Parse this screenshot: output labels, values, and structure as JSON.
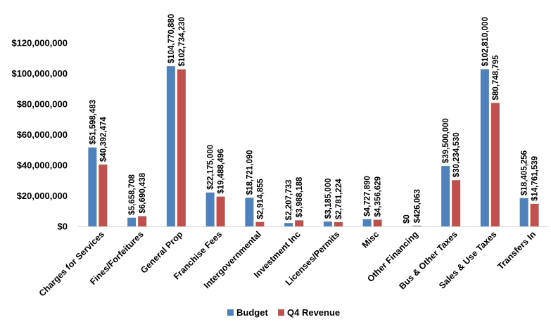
{
  "chart_data": {
    "type": "bar",
    "title": "",
    "xlabel": "",
    "ylabel": "",
    "ylim": [
      0,
      120000000
    ],
    "y_ticks": [
      0,
      20000000,
      40000000,
      60000000,
      80000000,
      100000000,
      120000000
    ],
    "y_tick_labels": [
      "$0",
      "$20,000,000",
      "$40,000,000",
      "$60,000,000",
      "$80,000,000",
      "$100,000,000",
      "$120,000,000"
    ],
    "grid": false,
    "legend_position": "bottom",
    "categories": [
      "Charges for Services",
      "Fines/Forfeitures",
      "General Prop",
      "Franchise Fees",
      "Intergovernmental",
      "Investment Inc",
      "Licenses/Permits",
      "Misc",
      "Other Financing",
      "Bus & Other Taxes",
      "Sales & Use Taxes",
      "Transfers In"
    ],
    "series": [
      {
        "name": "Budget",
        "color": "#4f81bd",
        "values": [
          51598483,
          5658708,
          104770880,
          22175000,
          18721090,
          2207733,
          3185000,
          4727890,
          0,
          39500000,
          102810000,
          18405256
        ],
        "labels": [
          "$51,598,483",
          "$5,658,708",
          "$104,770,880",
          "$22,175,000",
          "$18,721,090",
          "$2,207,733",
          "$3,185,000",
          "$4,727,890",
          "$0",
          "$39,500,000",
          "$102,810,000",
          "$18,405,256"
        ]
      },
      {
        "name": "Q4 Revenue",
        "color": "#c0504d",
        "values": [
          40392474,
          6690438,
          102734230,
          19488496,
          2914855,
          3988188,
          2781224,
          4356629,
          426063,
          30234530,
          80748795,
          14761539
        ],
        "labels": [
          "$40,392,474",
          "$6,690,438",
          "$102,734,230",
          "$19,488,496",
          "$2,914,855",
          "$3,988,188",
          "$2,781,224",
          "$4,356,629",
          "$426,063",
          "$30,234,530",
          "$80,748,795",
          "$14,761,539"
        ]
      }
    ]
  }
}
